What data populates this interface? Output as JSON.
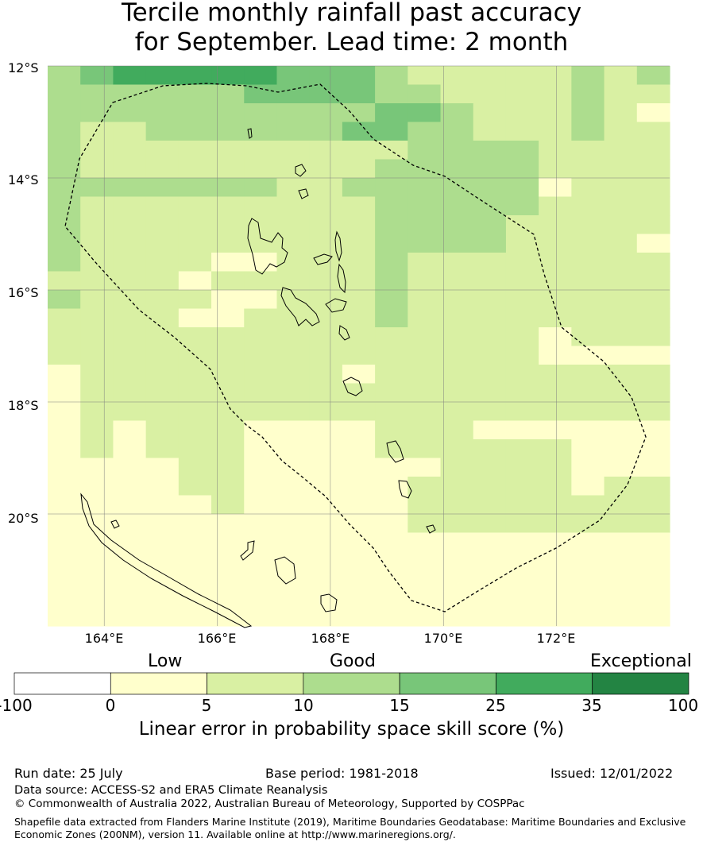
{
  "title_line1": "Tercile monthly rainfall past accuracy",
  "title_line2": "for September. Lead time: 2 month",
  "map": {
    "lon_min": 163,
    "lon_max": 174,
    "lat_min": -22.0,
    "lat_max": -12,
    "grid_lons": [
      164,
      166,
      168,
      170,
      172
    ],
    "grid_lats": [
      -12,
      -14,
      -16,
      -18,
      -20
    ],
    "lat_labels": [
      "12°S",
      "14°S",
      "16°S",
      "18°S",
      "20°S"
    ],
    "lon_labels": [
      "164°E",
      "166°E",
      "168°E",
      "170°E",
      "172°E"
    ],
    "colors": [
      "#ffffff",
      "#ffffcc",
      "#d9f0a3",
      "#addd8e",
      "#78c679",
      "#41ab5d",
      "#238443"
    ],
    "cells": [
      "3455555444322222323",
      "3333334444332222322",
      "3333333333443222321",
      "3223333334433222322",
      "3222222222233332222",
      "3222222222333332222",
      "3333333223333331222",
      "3222222222333332222",
      "3222222222333322222",
      "3222222222333322221",
      "3222211222322222222",
      "2222122222322222222",
      "3222211222322222222",
      "2222112222322222222",
      "2222222222222221222",
      "2222222222222221111",
      "1222222221222222222",
      "1222222222222222222",
      "1222222222222222222",
      "1212221111222111111",
      "1212221111222222111",
      "1111221111112222111",
      "1111221111122222122",
      "1111121111122222222",
      "1111111111122222222",
      "1111111111111111111",
      "1111111111111111111",
      "1111111111111111111",
      "1111111111111111111",
      "1111111111111111111"
    ]
  },
  "categories": [
    "Low",
    "Good",
    "Exceptional"
  ],
  "colorbar": {
    "colors": [
      "#ffffff",
      "#ffffcc",
      "#d9f0a3",
      "#addd8e",
      "#78c679",
      "#41ab5d",
      "#238443"
    ],
    "ticks": [
      "-100",
      "0",
      "5",
      "10",
      "15",
      "25",
      "35",
      "100"
    ],
    "label": "Linear error in probability space skill score (%)"
  },
  "run_date": "Run date: 25 July",
  "base_period": "Base period: 1981-2018",
  "issued": "Issued: 12/01/2022",
  "data_source": "Data source: ACCESS-S2 and ERA5 Climate Reanalysis",
  "copyright": "© Commonwealth of Australia 2022, Australian Bureau of Meteorology, Supported by COSPPac",
  "shapefile": "Shapefile data extracted from Flanders Marine Institute (2019), Maritime Boundaries Geodatabase: Maritime Boundaries and Exclusive Economic Zones (200NM), version 11. Available online at http://www.marineregions.org/."
}
